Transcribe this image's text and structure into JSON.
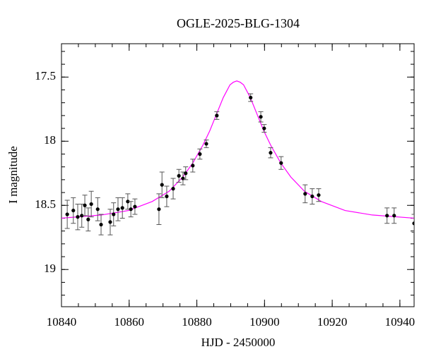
{
  "chart_data": {
    "type": "scatter",
    "title": "OGLE-2025-BLG-1304",
    "x_label": "HJD - 2450000",
    "y_label": "I magnitude",
    "x": [
      10841.7,
      10843.5,
      10844.8,
      10846.0,
      10846.9,
      10847.9,
      10848.8,
      10850.7,
      10851.7,
      10854.4,
      10855.4,
      10856.7,
      10858.0,
      10859.6,
      10860.5,
      10861.7,
      10868.8,
      10869.7,
      10871.1,
      10873.0,
      10874.7,
      10875.9,
      10876.7,
      10878.8,
      10880.9,
      10882.8,
      10885.9,
      10895.9,
      10898.9,
      10899.9,
      10901.8,
      10904.9,
      10912.0,
      10914.1,
      10916.0,
      10936.2,
      10938.3,
      10944.2
    ],
    "values": [
      18.57,
      18.54,
      18.59,
      18.58,
      18.5,
      18.61,
      18.49,
      18.53,
      18.65,
      18.63,
      18.57,
      18.53,
      18.52,
      18.47,
      18.53,
      18.51,
      18.53,
      18.34,
      18.43,
      18.37,
      18.27,
      18.29,
      18.25,
      18.19,
      18.1,
      18.02,
      17.8,
      17.66,
      17.81,
      17.9,
      18.09,
      18.17,
      18.41,
      18.43,
      18.42,
      18.58,
      18.58,
      18.64
    ],
    "errors": [
      0.11,
      0.1,
      0.1,
      0.09,
      0.08,
      0.09,
      0.1,
      0.09,
      0.08,
      0.1,
      0.09,
      0.09,
      0.08,
      0.06,
      0.06,
      0.06,
      0.12,
      0.1,
      0.08,
      0.08,
      0.05,
      0.05,
      0.05,
      0.05,
      0.04,
      0.03,
      0.03,
      0.03,
      0.04,
      0.03,
      0.04,
      0.05,
      0.07,
      0.06,
      0.05,
      0.06,
      0.06,
      0.07
    ],
    "color": "#000000",
    "model": {
      "color": "#ff00ff",
      "x": [
        10840,
        10851.8,
        10859.8,
        10866.8,
        10871.8,
        10875.8,
        10878.8,
        10881.8,
        10883.8,
        10885.8,
        10887.8,
        10888.8,
        10889.8,
        10890.8,
        10891.8,
        10892.8,
        10893.8,
        10894.8,
        10895.8,
        10897.8,
        10899.8,
        10901.8,
        10904.8,
        10907.8,
        10911.8,
        10916.8,
        10923.8,
        10931.8,
        10944.2
      ],
      "values": [
        18.6,
        18.575,
        18.54,
        18.47,
        18.39,
        18.28,
        18.17,
        18.03,
        17.92,
        17.79,
        17.66,
        17.61,
        17.56,
        17.54,
        17.53,
        17.54,
        17.56,
        17.61,
        17.66,
        17.79,
        17.92,
        18.03,
        18.17,
        18.28,
        18.39,
        18.47,
        18.54,
        18.575,
        18.6
      ]
    },
    "xlim": [
      10840,
      10944.2
    ],
    "ylim": [
      19.29,
      17.24
    ],
    "xticks": [
      10840,
      10860,
      10880,
      10900,
      10920,
      10940
    ],
    "yticks": [
      17.5,
      18,
      18.5,
      19
    ],
    "xminor": 5,
    "yminor": 0.1
  }
}
